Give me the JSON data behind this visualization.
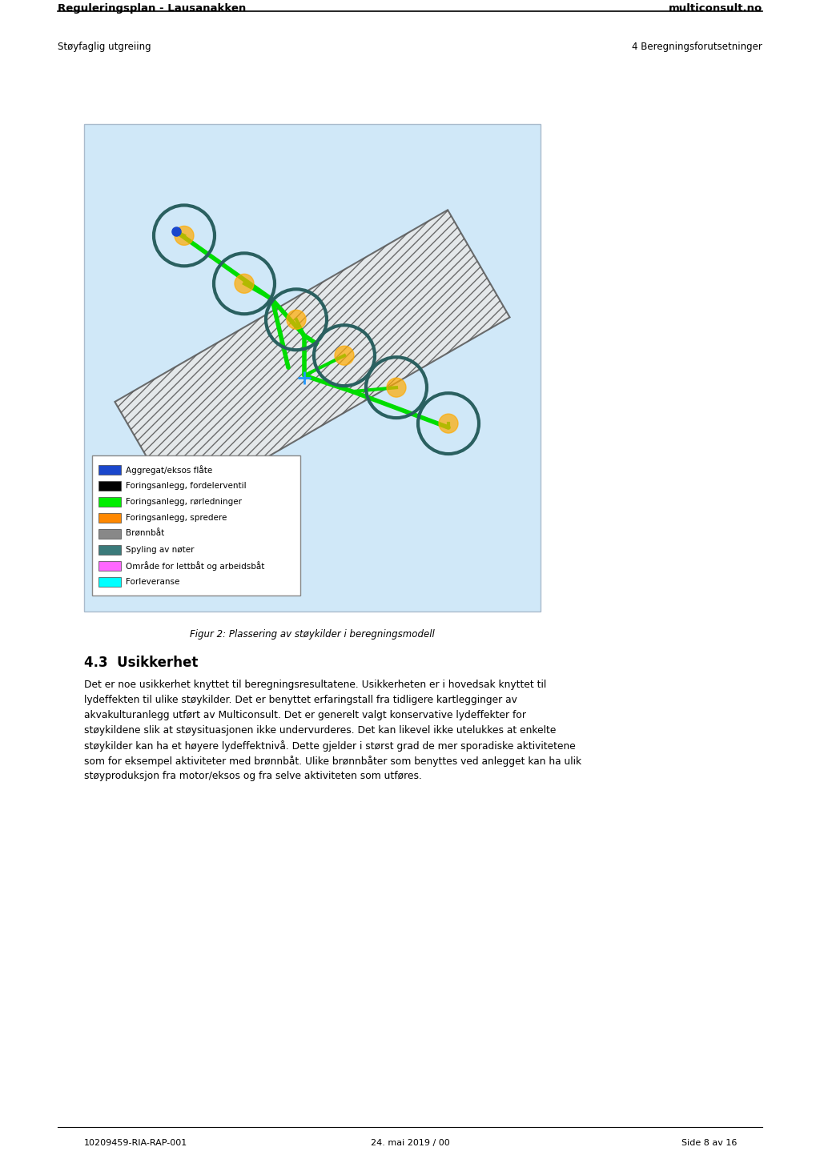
{
  "title_left": "Reguleringsplan - Lausanakken",
  "title_right": "multiconsult.no",
  "subtitle_left": "Støyfaglig utgreiing",
  "subtitle_right": "4 Beregningsforutsetninger",
  "section_title": "4.3  Usikkerhet",
  "body_text": "Det er noe usikkerhet knyttet til beregningsresultatene. Usikkerheten er i hovedsak knyttet til\nlydeffekten til ulike støykilder. Det er benyttet erfaringstall fra tidligere kartlegginger av\nakvakulturanlegg utført av Multiconsult. Det er generelt valgt konservative lydeffekter for\nstøykildene slik at støysituasjonen ikke undervurderes. Det kan likevel ikke utelukkes at enkelte\nstøykilder kan ha et høyere lydeffektnivå. Dette gjelder i størst grad de mer sporadiske aktivitetene\nsom for eksempel aktiviteter med brønnbåt. Ulike brønnbåter som benyttes ved anlegget kan ha ulik\nstøyproduksjon fra motor/eksos og fra selve aktiviteten som utføres.",
  "figure_caption": "Figur 2: Plassering av støykilder i beregningsmodell",
  "footer_left": "10209459-RIA-RAP-001",
  "footer_center": "24. mai 2019 / 00",
  "footer_right": "Side 8 av 16",
  "legend_items": [
    {
      "color": "#1a47cc",
      "label": "Aggregat/eksos flåte"
    },
    {
      "color": "#000000",
      "label": "Foringsanlegg, fordelerventil"
    },
    {
      "color": "#00ee00",
      "label": "Foringsanlegg, rørledninger"
    },
    {
      "color": "#ff8800",
      "label": "Foringsanlegg, spredere"
    },
    {
      "color": "#888888",
      "label": "Brønnbåt"
    },
    {
      "color": "#3a7a7a",
      "label": "Spyling av nøter"
    },
    {
      "color": "#ff66ff",
      "label": "Område for lettbåt og arbeidsbåt"
    },
    {
      "color": "#00ffff",
      "label": "Forleveranse"
    }
  ],
  "bg_color": "#ffffff",
  "figure_bg": "#d0e8f8",
  "map_bg": "#c8dff0"
}
